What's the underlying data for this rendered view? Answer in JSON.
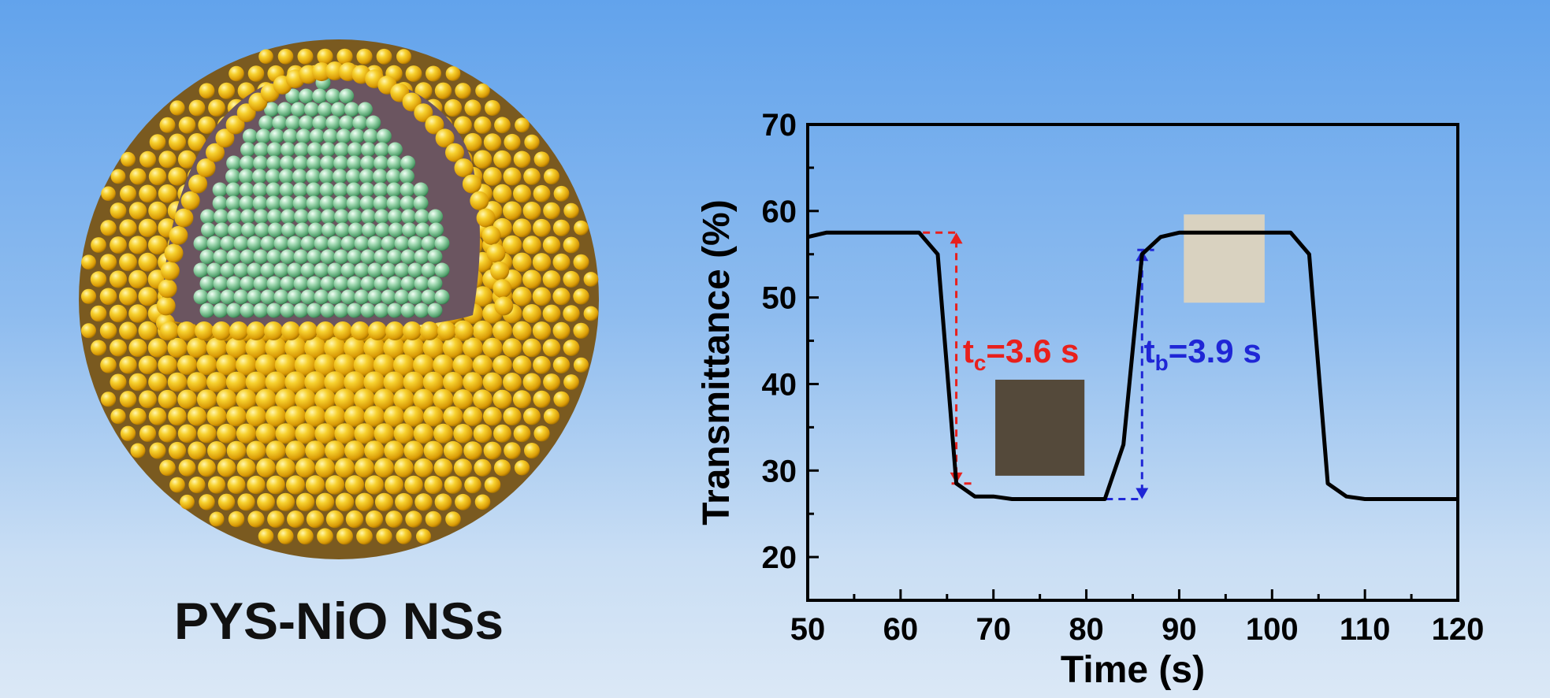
{
  "illustration": {
    "caption": "PYS-NiO NSs",
    "shell_color": "#f2c318",
    "core_color": "#7ec79a",
    "cavity_color": "#6b5560"
  },
  "chart_data": {
    "type": "line",
    "title": "",
    "xlabel": "Time (s)",
    "ylabel": "Transmittance (%)",
    "xlim": [
      50,
      120
    ],
    "ylim": [
      15,
      70
    ],
    "x_ticks": [
      50,
      60,
      70,
      80,
      90,
      100,
      110,
      120
    ],
    "y_ticks": [
      20,
      30,
      40,
      50,
      60,
      70
    ],
    "grid": false,
    "series": [
      {
        "color": "#000000",
        "x": [
          50,
          52,
          62,
          64,
          66,
          68,
          70,
          72,
          80,
          82,
          84,
          86,
          88,
          90,
          100,
          102,
          104,
          106,
          108,
          110,
          120
        ],
        "y": [
          57,
          57.5,
          57.5,
          55,
          28.5,
          27,
          27,
          26.7,
          26.7,
          26.7,
          33,
          55,
          57,
          57.5,
          57.5,
          57.5,
          55,
          28.5,
          27,
          26.7,
          26.7
        ]
      }
    ],
    "annotations": [
      {
        "name": "coloring-time",
        "text_main": "t",
        "text_sub": "c",
        "text_rest": "=3.6 s",
        "color": "#e8201c",
        "t_start": 62.4,
        "t_end": 66,
        "y_high": 57.5,
        "y_low": 28.5
      },
      {
        "name": "bleaching-time",
        "text_main": "t",
        "text_sub": "b",
        "text_rest": "=3.9 s",
        "color": "#1f26d6",
        "t_start": 82.1,
        "t_end": 86,
        "y_high": 55.5,
        "y_low": 26.7
      }
    ],
    "insets": [
      {
        "name": "colored-state-swatch",
        "color": "#54493a"
      },
      {
        "name": "bleached-state-swatch",
        "color": "#d9d2c0"
      }
    ]
  }
}
